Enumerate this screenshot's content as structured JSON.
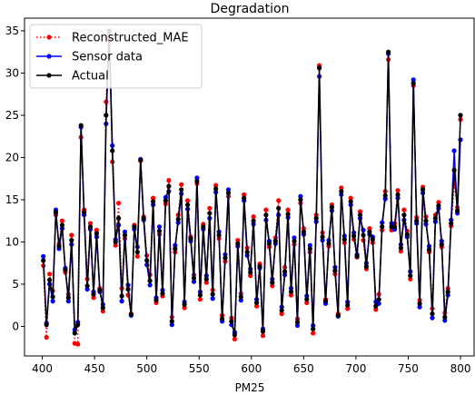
{
  "chart_data": {
    "type": "line",
    "title": "Degradation",
    "xlabel": "PM25",
    "ylabel": "",
    "xlim": [
      383,
      813
    ],
    "ylim": [
      -3.5,
      36.5
    ],
    "xticks": [
      400,
      450,
      500,
      550,
      600,
      650,
      700,
      750,
      800
    ],
    "yticks": [
      0,
      5,
      10,
      15,
      20,
      25,
      30,
      35
    ],
    "grid": false,
    "legend_position": "top-left",
    "series": [
      {
        "name": "Reconstructed_MAE",
        "color": "#ff0000",
        "style": "dotted",
        "marker": "circle",
        "x": [
          401,
          404,
          407,
          410,
          413,
          416,
          419,
          422,
          425,
          428,
          431,
          434,
          437,
          440,
          443,
          446,
          449,
          452,
          455,
          458,
          461,
          464,
          467,
          470,
          473,
          476,
          479,
          482,
          485,
          488,
          491,
          494,
          497,
          500,
          503,
          506,
          509,
          512,
          515,
          518,
          521,
          524,
          527,
          530,
          533,
          536,
          539,
          542,
          545,
          548,
          551,
          554,
          557,
          560,
          563,
          566,
          569,
          572,
          575,
          578,
          581,
          584,
          587,
          590,
          593,
          596,
          599,
          602,
          605,
          608,
          611,
          614,
          617,
          620,
          623,
          626,
          629,
          632,
          635,
          638,
          641,
          644,
          647,
          650,
          653,
          656,
          659,
          662,
          665,
          668,
          671,
          674,
          677,
          680,
          683,
          686,
          689,
          692,
          695,
          698,
          701,
          704,
          707,
          710,
          713,
          716,
          719,
          722,
          725,
          728,
          731,
          734,
          737,
          740,
          743,
          746,
          749,
          752,
          755,
          758,
          761,
          764,
          767,
          770,
          773,
          776,
          779,
          782,
          785,
          788,
          791,
          794,
          797,
          800
        ],
        "values": [
          7.2,
          -1.3,
          6.2,
          4.2,
          13.2,
          9.8,
          12.5,
          6.4,
          3.8,
          10.8,
          -2.0,
          -2.1,
          22.4,
          13.8,
          5.6,
          12.2,
          3.4,
          11.4,
          4.5,
          1.8,
          26.6,
          34.0,
          19.5,
          9.6,
          14.6,
          4.5,
          10.4,
          3.7,
          1.5,
          12.0,
          8.3,
          19.6,
          13.0,
          8.4,
          6.1,
          15.2,
          2.8,
          10.9,
          3.6,
          14.5,
          17.3,
          1.1,
          8.8,
          13.2,
          16.8,
          2.2,
          14.9,
          10.6,
          6.1,
          16.9,
          3.2,
          12.1,
          5.2,
          14.0,
          4.3,
          16.7,
          10.4,
          1.3,
          7.7,
          15.4,
          1.0,
          -1.5,
          10.2,
          3.9,
          15.6,
          9.3,
          6.0,
          13.0,
          2.4,
          7.4,
          -1.1,
          13.8,
          9.4,
          4.8,
          10.5,
          14.9,
          1.5,
          7.0,
          13.8,
          3.7,
          9.7,
          0.9,
          14.6,
          11.6,
          2.8,
          8.8,
          -0.8,
          13.2,
          30.9,
          11.1,
          3.2,
          9.5,
          14.4,
          6.2,
          1.5,
          16.4,
          9.9,
          2.1,
          15.2,
          10.3,
          8.2,
          13.6,
          10.2,
          6.8,
          11.6,
          9.9,
          2.0,
          3.8,
          11.4,
          16.0,
          31.6,
          11.4,
          12.2,
          16.1,
          8.9,
          13.8,
          11.3,
          5.6,
          28.5,
          12.9,
          3.1,
          16.5,
          13.0,
          8.8,
          2.1,
          13.2,
          14.7,
          9.4,
          1.6,
          4.5,
          11.9,
          16.8,
          14.1,
          24.5
        ],
        "values_note": ""
      },
      {
        "name": "Sensor data",
        "color": "#0000ff",
        "style": "solid",
        "marker": "circle",
        "x": [
          401,
          404,
          407,
          410,
          413,
          416,
          419,
          422,
          425,
          428,
          431,
          434,
          437,
          440,
          443,
          446,
          449,
          452,
          455,
          458,
          461,
          464,
          467,
          470,
          473,
          476,
          479,
          482,
          485,
          488,
          491,
          494,
          497,
          500,
          503,
          506,
          509,
          512,
          515,
          518,
          521,
          524,
          527,
          530,
          533,
          536,
          539,
          542,
          545,
          548,
          551,
          554,
          557,
          560,
          563,
          566,
          569,
          572,
          575,
          578,
          581,
          584,
          587,
          590,
          593,
          596,
          599,
          602,
          605,
          608,
          611,
          614,
          617,
          620,
          623,
          626,
          629,
          632,
          635,
          638,
          641,
          644,
          647,
          650,
          653,
          656,
          659,
          662,
          665,
          668,
          671,
          674,
          677,
          680,
          683,
          686,
          689,
          692,
          695,
          698,
          701,
          704,
          707,
          710,
          713,
          716,
          719,
          722,
          725,
          728,
          731,
          734,
          737,
          740,
          743,
          746,
          749,
          752,
          755,
          758,
          761,
          764,
          767,
          770,
          773,
          776,
          779,
          782,
          785,
          788,
          791,
          794,
          797,
          800
        ],
        "values": [
          8.3,
          0.4,
          5.0,
          3.0,
          13.8,
          9.2,
          11.6,
          6.9,
          3.0,
          9.7,
          -0.4,
          0.5,
          23.6,
          13.2,
          4.4,
          11.5,
          4.1,
          10.6,
          4.1,
          2.6,
          24.0,
          34.8,
          21.4,
          10.3,
          12.0,
          3.0,
          11.2,
          4.9,
          1.3,
          11.5,
          9.4,
          19.8,
          12.6,
          7.3,
          4.9,
          14.4,
          3.4,
          11.8,
          4.3,
          15.3,
          16.0,
          0.2,
          9.6,
          12.3,
          15.7,
          2.9,
          13.9,
          10.1,
          5.3,
          17.6,
          4.1,
          11.5,
          6.0,
          12.8,
          3.3,
          15.9,
          11.2,
          0.6,
          8.5,
          16.2,
          0.2,
          -0.7,
          9.5,
          3.1,
          14.9,
          8.4,
          6.8,
          12.1,
          3.2,
          6.9,
          -0.3,
          12.6,
          10.1,
          5.6,
          9.8,
          13.2,
          2.3,
          6.1,
          12.9,
          4.5,
          10.5,
          0.1,
          15.4,
          10.9,
          3.6,
          9.6,
          0.1,
          12.4,
          29.6,
          10.2,
          2.7,
          10.2,
          13.7,
          7.0,
          1.2,
          15.6,
          10.7,
          2.9,
          14.4,
          11.1,
          8.5,
          12.8,
          11.4,
          7.5,
          10.9,
          10.6,
          2.9,
          2.7,
          12.3,
          15.1,
          32.3,
          12.2,
          11.5,
          15.2,
          9.7,
          12.6,
          10.6,
          6.5,
          29.2,
          12.2,
          2.3,
          15.8,
          12.1,
          9.5,
          1.0,
          12.4,
          14.0,
          10.1,
          0.7,
          3.7,
          12.6,
          20.8,
          13.4,
          22.1
        ],
        "values_note": ""
      },
      {
        "name": "Actual",
        "color": "#000000",
        "style": "solid",
        "marker": "circle",
        "x": [
          401,
          404,
          407,
          410,
          413,
          416,
          419,
          422,
          425,
          428,
          431,
          434,
          437,
          440,
          443,
          446,
          449,
          452,
          455,
          458,
          461,
          464,
          467,
          470,
          473,
          476,
          479,
          482,
          485,
          488,
          491,
          494,
          497,
          500,
          503,
          506,
          509,
          512,
          515,
          518,
          521,
          524,
          527,
          530,
          533,
          536,
          539,
          542,
          545,
          548,
          551,
          554,
          557,
          560,
          563,
          566,
          569,
          572,
          575,
          578,
          581,
          584,
          587,
          590,
          593,
          596,
          599,
          602,
          605,
          608,
          611,
          614,
          617,
          620,
          623,
          626,
          629,
          632,
          635,
          638,
          641,
          644,
          647,
          650,
          653,
          656,
          659,
          662,
          665,
          668,
          671,
          674,
          677,
          680,
          683,
          686,
          689,
          692,
          695,
          698,
          701,
          704,
          707,
          710,
          713,
          716,
          719,
          722,
          725,
          728,
          731,
          734,
          737,
          740,
          743,
          746,
          749,
          752,
          755,
          758,
          761,
          764,
          767,
          770,
          773,
          776,
          779,
          782,
          785,
          788,
          791,
          794,
          797,
          800
        ],
        "values": [
          7.8,
          0.2,
          5.5,
          3.5,
          13.5,
          9.5,
          12.0,
          6.7,
          3.4,
          10.2,
          -0.8,
          0.2,
          23.8,
          13.5,
          4.8,
          11.8,
          3.8,
          11.0,
          4.3,
          2.2,
          25.0,
          35.0,
          20.8,
          10.0,
          12.8,
          3.6,
          10.8,
          4.4,
          1.4,
          11.8,
          8.8,
          19.7,
          12.8,
          7.8,
          5.4,
          14.8,
          3.1,
          11.3,
          3.9,
          14.9,
          16.6,
          0.6,
          9.2,
          12.7,
          16.2,
          2.6,
          14.4,
          10.4,
          5.7,
          17.2,
          3.7,
          11.8,
          5.6,
          13.4,
          3.8,
          16.3,
          10.8,
          0.9,
          8.1,
          15.8,
          0.6,
          -1.0,
          9.8,
          3.5,
          15.2,
          8.8,
          6.4,
          12.5,
          2.8,
          7.1,
          -0.6,
          13.2,
          9.8,
          5.2,
          10.1,
          14.0,
          1.9,
          6.5,
          13.3,
          4.1,
          10.1,
          0.5,
          15.0,
          11.2,
          3.2,
          9.2,
          -0.3,
          12.8,
          30.6,
          10.6,
          3.0,
          9.8,
          14.1,
          6.6,
          1.3,
          16.0,
          10.3,
          2.5,
          14.8,
          10.7,
          8.3,
          13.2,
          10.8,
          7.1,
          11.2,
          10.3,
          2.4,
          3.2,
          11.8,
          15.5,
          32.5,
          11.8,
          11.8,
          15.6,
          9.3,
          13.2,
          10.9,
          6.0,
          28.8,
          12.5,
          2.7,
          16.2,
          12.5,
          9.1,
          1.5,
          12.8,
          14.3,
          9.7,
          1.1,
          4.1,
          12.2,
          18.5,
          13.7,
          25.0
        ],
        "values_note": ""
      }
    ]
  }
}
